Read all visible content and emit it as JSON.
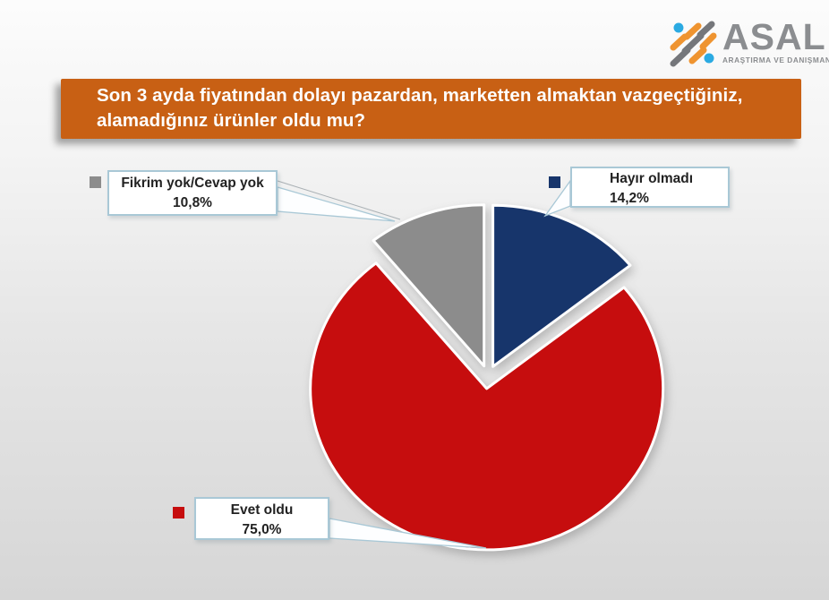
{
  "brand": {
    "name": "ASAL",
    "tagline": "ARAŞTIRMA VE DANIŞMANLIK",
    "logo_colors": {
      "orange": "#EF9430",
      "gray": "#75777B",
      "blue": "#2BAAE2",
      "text": "#8B8D90"
    }
  },
  "title": {
    "line1": "Son 3 ayda fiyatından dolayı pazardan, marketten almaktan vazgeçtiğiniz,",
    "line2": "alamadığınız ürünler oldu mu?"
  },
  "colors": {
    "banner": "#C86014",
    "callout_border": "#A9C8D6",
    "callout_text": "#222222",
    "background_top": "#FCFCFC",
    "background_bottom": "#D6D6D6"
  },
  "chart_data": {
    "type": "pie",
    "title": "Son 3 ayda fiyatından dolayı pazardan, marketten almaktan vazgeçtiğiniz, alamadığınız ürünler oldu mu?",
    "unit": "%",
    "direction": "clockwise",
    "start_angle_deg": 0,
    "exploded": true,
    "legend_position": "callout-labels",
    "slices": [
      {
        "label": "Hayır olmadı",
        "value": 14.2,
        "display": "14,2%",
        "color": "#17356B"
      },
      {
        "label": "Evet oldu",
        "value": 75.0,
        "display": "75,0%",
        "color": "#C60D0E"
      },
      {
        "label": "Fikrim yok/Cevap yok",
        "value": 10.8,
        "display": "10,8%",
        "color": "#8C8C8C"
      }
    ]
  }
}
